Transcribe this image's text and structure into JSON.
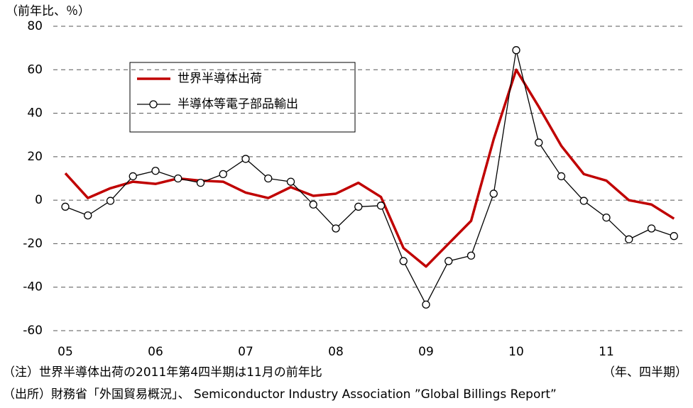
{
  "chart_data": {
    "type": "line",
    "y_label": "（前年比、％）",
    "x_label": "（年、四半期）",
    "notes": [
      "（注）世界半導体出荷の2011年第4四半期は11月の前年比",
      "（出所）財務省「外国貿易概況」、 Semiconductor Industry Association ”Global Billings Report”"
    ],
    "categories": [
      "05",
      null,
      null,
      null,
      "06",
      null,
      null,
      null,
      "07",
      null,
      null,
      null,
      "08",
      null,
      null,
      null,
      "09",
      null,
      null,
      null,
      "10",
      null,
      null,
      null,
      "11",
      null,
      null,
      null
    ],
    "series": [
      {
        "name": "世界半導体出荷",
        "color": "#c00000",
        "marker": false,
        "values": [
          12.4,
          1,
          5.5,
          8.5,
          7.5,
          10,
          9,
          8.5,
          3.5,
          1,
          6,
          2,
          3,
          8,
          1.5,
          -22,
          -30.5,
          -20,
          -9.5,
          28,
          60,
          43,
          25,
          12,
          9,
          0,
          -2,
          -8.5
        ]
      },
      {
        "name": "半導体等電子部品輸出",
        "color": "#000000",
        "marker": true,
        "values": [
          -3,
          -7,
          -0.3,
          11,
          13.5,
          10,
          8,
          12,
          19,
          10,
          8.5,
          -2,
          -13,
          -3,
          -2.5,
          -28,
          -48,
          -28,
          -25.5,
          3,
          69,
          26.5,
          11,
          -0.3,
          -8,
          -18,
          -13,
          -16.5
        ]
      }
    ],
    "ylim": [
      -60,
      80
    ],
    "yticks": [
      -60,
      -40,
      -20,
      0,
      20,
      40,
      60,
      80
    ],
    "grid": true
  }
}
